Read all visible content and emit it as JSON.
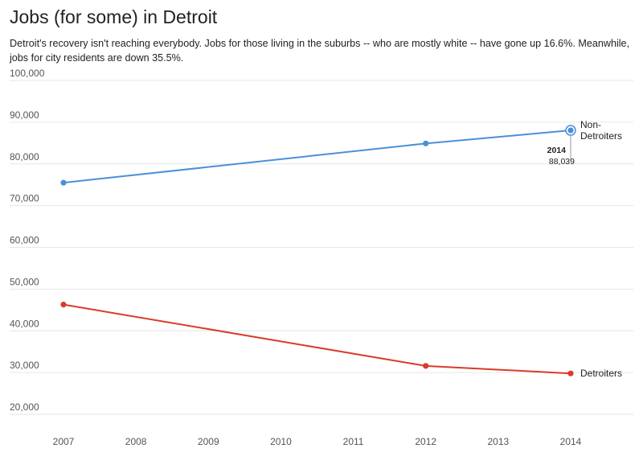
{
  "chart_data": {
    "type": "line",
    "title": "Jobs (for some) in Detroit",
    "subtitle": "Detroit's recovery isn't reaching everybody. Jobs for those living in the suburbs -- who are mostly white -- have gone up 16.6%. Meanwhile, jobs for city residents are down 35.5%.",
    "x_ticks": [
      "2007",
      "2008",
      "2009",
      "2010",
      "2011",
      "2012",
      "2013",
      "2014"
    ],
    "y_ticks": [
      "20,000",
      "30,000",
      "40,000",
      "50,000",
      "60,000",
      "70,000",
      "80,000",
      "90,000",
      "100,000"
    ],
    "xlim": [
      2007,
      2014
    ],
    "ylim": [
      17500,
      100000
    ],
    "grid": true,
    "series": [
      {
        "name": "Non-Detroiters",
        "label_lines": [
          "Non-",
          "Detroiters"
        ],
        "color": "#4a90d9",
        "x": [
          2007,
          2012,
          2014
        ],
        "values": [
          75500,
          84900,
          88039
        ]
      },
      {
        "name": "Detroiters",
        "label_lines": [
          "Detroiters"
        ],
        "color": "#d93b2b",
        "x": [
          2007,
          2012,
          2014
        ],
        "values": [
          46300,
          31600,
          29800
        ]
      }
    ],
    "tooltip": {
      "series_index": 0,
      "year": "2014",
      "value": "88,039"
    }
  }
}
